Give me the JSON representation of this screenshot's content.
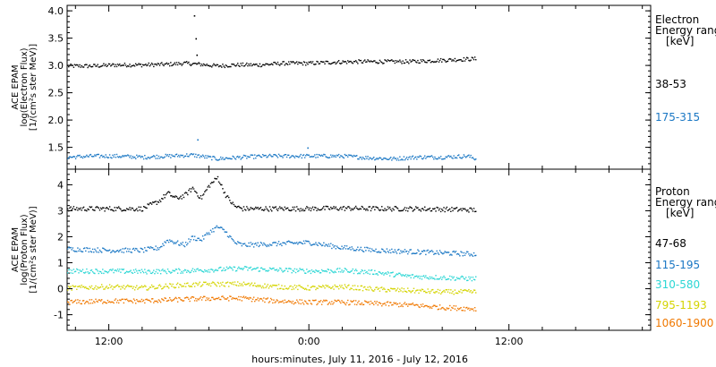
{
  "chart_data": {
    "type": "scatter",
    "xlabel": "hours:minutes, July 11, 2016 - July 12, 2016",
    "x_ticks": [
      {
        "hour": 12,
        "label": "12:00"
      },
      {
        "hour": 24,
        "label": "0:00"
      },
      {
        "hour": 36,
        "label": "12:00"
      }
    ],
    "x_range_hours": [
      9.5,
      44.5
    ],
    "panels": [
      {
        "id": "electron",
        "ylabel_lines": [
          "ACE EPAM",
          "log(Electron Flux)",
          "[1/(cm²s ster MeV)]"
        ],
        "ylim": [
          1.1,
          4.1
        ],
        "yticks": [
          "1.5",
          "2.0",
          "2.5",
          "3.0",
          "3.5",
          "4.0"
        ],
        "legend_title": [
          "Electron",
          "Energy range",
          "[keV]"
        ],
        "series": [
          {
            "name": "38-53",
            "color": "#000000",
            "x": [
              9.5,
              11,
              12.5,
              14,
              15.5,
              16.5,
              17.5,
              18.5,
              19.5,
              21,
              22.5,
              24,
              25.5,
              27,
              28.5,
              30,
              31.5,
              33,
              34
            ],
            "y": [
              3.0,
              3.0,
              3.02,
              3.02,
              3.03,
              3.05,
              3.03,
              3.0,
              3.02,
              3.02,
              3.05,
              3.05,
              3.07,
              3.08,
              3.08,
              3.08,
              3.1,
              3.12,
              3.13
            ],
            "spikes": [
              {
                "x": 17.1,
                "y": 3.92
              },
              {
                "x": 17.2,
                "y": 3.5
              },
              {
                "x": 17.25,
                "y": 3.2
              }
            ]
          },
          {
            "name": "175-315",
            "color": "#1a77c4",
            "x": [
              9.5,
              11,
              12.5,
              14,
              15.5,
              17,
              18.5,
              20,
              21.5,
              23,
              24.5,
              26,
              27.5,
              29,
              30.5,
              32,
              33.5,
              34
            ],
            "y": [
              1.33,
              1.35,
              1.35,
              1.33,
              1.35,
              1.37,
              1.3,
              1.33,
              1.35,
              1.35,
              1.35,
              1.35,
              1.32,
              1.3,
              1.33,
              1.33,
              1.35,
              1.3
            ],
            "spikes": [
              {
                "x": 17.3,
                "y": 1.65
              },
              {
                "x": 23.9,
                "y": 1.5
              }
            ]
          }
        ]
      },
      {
        "id": "proton",
        "ylabel_lines": [
          "ACE EPAM",
          "log(Proton Flux)",
          "[1/(cm²s ster MeV)]"
        ],
        "ylim": [
          -1.6,
          4.6
        ],
        "yticks": [
          "-1",
          "0",
          "1",
          "2",
          "3",
          "4"
        ],
        "legend_title": [
          "Proton",
          "Energy range",
          "[keV]"
        ],
        "series": [
          {
            "name": "47-68",
            "color": "#000000",
            "x": [
              9.5,
              12,
              14,
              15,
              15.5,
              16,
              16.5,
              17,
              17.5,
              18,
              18.5,
              19,
              19.5,
              20,
              22,
              24,
              26,
              28,
              30,
              32,
              34
            ],
            "y": [
              3.1,
              3.1,
              3.1,
              3.4,
              3.7,
              3.5,
              3.6,
              3.9,
              3.5,
              4.0,
              4.3,
              3.6,
              3.2,
              3.1,
              3.1,
              3.1,
              3.12,
              3.1,
              3.1,
              3.08,
              3.05
            ]
          },
          {
            "name": "115-195",
            "color": "#1a77c4",
            "x": [
              9.5,
              12,
              14,
              15,
              15.5,
              16,
              16.5,
              17,
              17.5,
              18,
              18.5,
              19,
              19.5,
              20,
              22,
              24,
              26,
              28,
              30,
              32,
              34
            ],
            "y": [
              1.55,
              1.5,
              1.5,
              1.6,
              1.9,
              1.8,
              1.7,
              2.0,
              1.9,
              2.2,
              2.4,
              2.2,
              1.8,
              1.7,
              1.75,
              1.8,
              1.6,
              1.5,
              1.45,
              1.4,
              1.35
            ]
          },
          {
            "name": "310-580",
            "color": "#2ad6d4",
            "x": [
              9.5,
              12,
              14,
              16,
              18,
              20,
              22,
              24,
              26,
              28,
              30,
              32,
              34
            ],
            "y": [
              0.7,
              0.7,
              0.68,
              0.7,
              0.75,
              0.8,
              0.75,
              0.7,
              0.72,
              0.65,
              0.5,
              0.45,
              0.4
            ]
          },
          {
            "name": "795-1193",
            "color": "#d4d400",
            "x": [
              9.5,
              12,
              14,
              16,
              18,
              20,
              22,
              24,
              26,
              28,
              30,
              32,
              34
            ],
            "y": [
              0.05,
              0.1,
              0.05,
              0.15,
              0.2,
              0.2,
              0.1,
              0.05,
              0.1,
              0.0,
              -0.05,
              -0.1,
              -0.1
            ]
          },
          {
            "name": "1060-1900",
            "color": "#f07800",
            "x": [
              9.5,
              12,
              14,
              16,
              18,
              20,
              22,
              24,
              26,
              28,
              30,
              32,
              34
            ],
            "y": [
              -0.5,
              -0.45,
              -0.45,
              -0.4,
              -0.35,
              -0.35,
              -0.45,
              -0.5,
              -0.5,
              -0.55,
              -0.6,
              -0.7,
              -0.75
            ]
          }
        ]
      }
    ]
  }
}
